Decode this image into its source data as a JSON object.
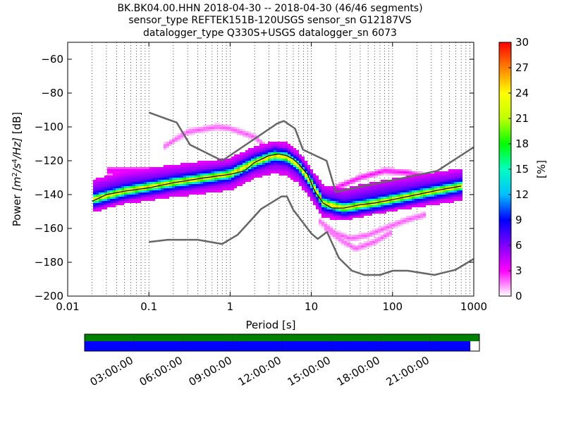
{
  "header": {
    "title_lines": [
      "BK.BK04.00.HHN   2018-04-30 -- 2018-04-30  (46/46 segments)",
      "sensor_type REFTEK151B-120USGS sensor_sn G12187VS",
      "datalogger_type Q330S+USGS datalogger_sn 6073"
    ]
  },
  "chart_data": [
    {
      "type": "heatmap",
      "x_scale": "log",
      "xlim": [
        0.01,
        1000
      ],
      "ylim": [
        -200,
        -50
      ],
      "xlabel": "Period [s]",
      "ylabel": "Power [m²/s⁴/Hz] [dB]",
      "ylabel_parts": [
        "Power ",
        "[m",
        "2",
        "/s",
        "4",
        "/Hz]",
        " [dB]"
      ],
      "x_ticks": [
        {
          "value": 0.01,
          "label": "0.01"
        },
        {
          "value": 0.1,
          "label": "0.1"
        },
        {
          "value": 1,
          "label": "1"
        },
        {
          "value": 10,
          "label": "10"
        },
        {
          "value": 100,
          "label": "100"
        },
        {
          "value": 1000,
          "label": "1000"
        }
      ],
      "y_ticks": [
        {
          "value": -60,
          "label": "−60"
        },
        {
          "value": -80,
          "label": "−80"
        },
        {
          "value": -100,
          "label": "−100"
        },
        {
          "value": -120,
          "label": "−120"
        },
        {
          "value": -140,
          "label": "−140"
        },
        {
          "value": -160,
          "label": "−160"
        },
        {
          "value": -180,
          "label": "−180"
        },
        {
          "value": -200,
          "label": "−200"
        }
      ],
      "grid": "dotted vertical at log decades",
      "colorbar": {
        "label": "[%]",
        "range": [
          0,
          30
        ],
        "ticks": [
          {
            "value": 0,
            "label": "0"
          },
          {
            "value": 3,
            "label": "3"
          },
          {
            "value": 6,
            "label": "6"
          },
          {
            "value": 9,
            "label": "9"
          },
          {
            "value": 12,
            "label": "12"
          },
          {
            "value": 15,
            "label": "15"
          },
          {
            "value": 18,
            "label": "18"
          },
          {
            "value": 21,
            "label": "21"
          },
          {
            "value": 24,
            "label": "24"
          },
          {
            "value": 27,
            "label": "27"
          },
          {
            "value": 30,
            "label": "30"
          }
        ],
        "colormap": [
          "#ffffff",
          "#ff00ff",
          "#8000ff",
          "#0000ff",
          "#00c0ff",
          "#00ffc0",
          "#00ff00",
          "#c0ff00",
          "#ffff00",
          "#ff8000",
          "#ff0000"
        ]
      },
      "model_color": "#666666",
      "mode_color": "#000000",
      "high_noise_model": [
        [
          0.1,
          -91.5
        ],
        [
          0.22,
          -97.4
        ],
        [
          0.32,
          -110.5
        ],
        [
          0.8,
          -120
        ],
        [
          3.8,
          -98
        ],
        [
          4.6,
          -96.5
        ],
        [
          6.3,
          -101
        ],
        [
          7.9,
          -113.5
        ],
        [
          15.4,
          -120
        ],
        [
          20,
          -138.5
        ],
        [
          354.8,
          -126
        ],
        [
          1000,
          -112
        ]
      ],
      "low_noise_model": [
        [
          0.1,
          -168
        ],
        [
          0.17,
          -166.7
        ],
        [
          0.4,
          -166.7
        ],
        [
          0.8,
          -169.2
        ],
        [
          1.24,
          -163.7
        ],
        [
          2.4,
          -148.6
        ],
        [
          4.3,
          -141.1
        ],
        [
          5.0,
          -141.1
        ],
        [
          6.0,
          -149
        ],
        [
          10,
          -163
        ],
        [
          12,
          -166.2
        ],
        [
          15.6,
          -162.1
        ],
        [
          21.9,
          -177.5
        ],
        [
          31.6,
          -185
        ],
        [
          45,
          -187.5
        ],
        [
          70,
          -187.5
        ],
        [
          101,
          -185
        ],
        [
          154,
          -185
        ],
        [
          328,
          -187.5
        ],
        [
          600,
          -184.4
        ],
        [
          1000,
          -178
        ]
      ],
      "mode_curve": [
        [
          0.02,
          -144
        ],
        [
          0.03,
          -140
        ],
        [
          0.05,
          -138
        ],
        [
          0.1,
          -136
        ],
        [
          0.2,
          -133
        ],
        [
          0.5,
          -130
        ],
        [
          1,
          -128
        ],
        [
          1.5,
          -126
        ],
        [
          2,
          -121
        ],
        [
          3,
          -117
        ],
        [
          4,
          -116
        ],
        [
          5,
          -117
        ],
        [
          6,
          -119
        ],
        [
          7,
          -122
        ],
        [
          9,
          -128
        ],
        [
          11,
          -138
        ],
        [
          14,
          -145
        ],
        [
          18,
          -148
        ],
        [
          25,
          -148
        ],
        [
          40,
          -146
        ],
        [
          60,
          -145
        ],
        [
          100,
          -143
        ],
        [
          200,
          -140
        ],
        [
          400,
          -137
        ],
        [
          700,
          -135
        ]
      ],
      "heat_bands": [
        {
          "center": [
            [
              0.02,
              -143
            ],
            [
              0.05,
              -138
            ],
            [
              0.2,
              -133
            ],
            [
              1,
              -128
            ],
            [
              2,
              -121
            ],
            [
              3.5,
              -117
            ],
            [
              5,
              -118
            ],
            [
              7,
              -123
            ],
            [
              10,
              -133
            ],
            [
              14,
              -145
            ],
            [
              25,
              -148
            ],
            [
              60,
              -145
            ],
            [
              200,
              -140
            ],
            [
              700,
              -135
            ]
          ],
          "half_width_db": 2.5,
          "percent": 26
        },
        {
          "center": [
            [
              0.02,
              -143
            ],
            [
              0.05,
              -138
            ],
            [
              0.2,
              -133
            ],
            [
              1,
              -128
            ],
            [
              2,
              -121
            ],
            [
              3.5,
              -117
            ],
            [
              5,
              -118
            ],
            [
              7,
              -123
            ],
            [
              10,
              -133
            ],
            [
              14,
              -145
            ],
            [
              25,
              -148
            ],
            [
              60,
              -145
            ],
            [
              200,
              -140
            ],
            [
              700,
              -135
            ]
          ],
          "half_width_db": 5,
          "percent": 14
        },
        {
          "center": [
            [
              0.02,
              -141
            ],
            [
              0.05,
              -136
            ],
            [
              0.2,
              -132
            ],
            [
              1,
              -128
            ],
            [
              2,
              -121
            ],
            [
              3.5,
              -118
            ],
            [
              5,
              -119
            ],
            [
              7,
              -124
            ],
            [
              10,
              -134
            ],
            [
              14,
              -144
            ],
            [
              25,
              -146
            ],
            [
              60,
              -142
            ],
            [
              200,
              -138
            ],
            [
              700,
              -134
            ]
          ],
          "half_width_db": 9,
          "percent": 8
        },
        {
          "center": [
            [
              0.03,
              -126
            ],
            [
              0.1,
              -126
            ],
            [
              0.3,
              -127
            ],
            [
              1,
              -127
            ]
          ],
          "half_width_db": 2,
          "percent": 4
        },
        {
          "center": [
            [
              0.15,
              -112
            ],
            [
              0.3,
              -103
            ],
            [
              0.7,
              -100
            ],
            [
              1,
              -101
            ],
            [
              2,
              -106
            ],
            [
              3,
              -113
            ]
          ],
          "half_width_db": 1.5,
          "percent": 2
        },
        {
          "center": [
            [
              12,
              -155
            ],
            [
              20,
              -163
            ],
            [
              30,
              -166
            ],
            [
              50,
              -164
            ],
            [
              80,
              -160
            ],
            [
              150,
              -155
            ],
            [
              250,
              -152
            ]
          ],
          "half_width_db": 1.5,
          "percent": 2
        },
        {
          "center": [
            [
              15,
              -160
            ],
            [
              25,
              -168
            ],
            [
              35,
              -172
            ],
            [
              60,
              -168
            ],
            [
              100,
              -162
            ]
          ],
          "half_width_db": 1.5,
          "percent": 2
        },
        {
          "center": [
            [
              20,
              -136
            ],
            [
              40,
              -130
            ],
            [
              80,
              -126
            ],
            [
              150,
              -127
            ],
            [
              300,
              -130
            ]
          ],
          "half_width_db": 1.5,
          "percent": 3
        }
      ]
    },
    {
      "type": "timeline",
      "tick_labels": [
        "03:00:00",
        "06:00:00",
        "09:00:00",
        "12:00:00",
        "15:00:00",
        "18:00:00",
        "21:00:00"
      ],
      "tick_hours": [
        3,
        6,
        9,
        12,
        15,
        18,
        21
      ],
      "range_hours": [
        0,
        24
      ],
      "top_bar": {
        "color": "#008000",
        "start_fraction": 0,
        "end_fraction": 1
      },
      "bottom_bar": {
        "color": "#0000ff",
        "start_fraction": 0,
        "end_fraction": 0.977
      }
    }
  ]
}
